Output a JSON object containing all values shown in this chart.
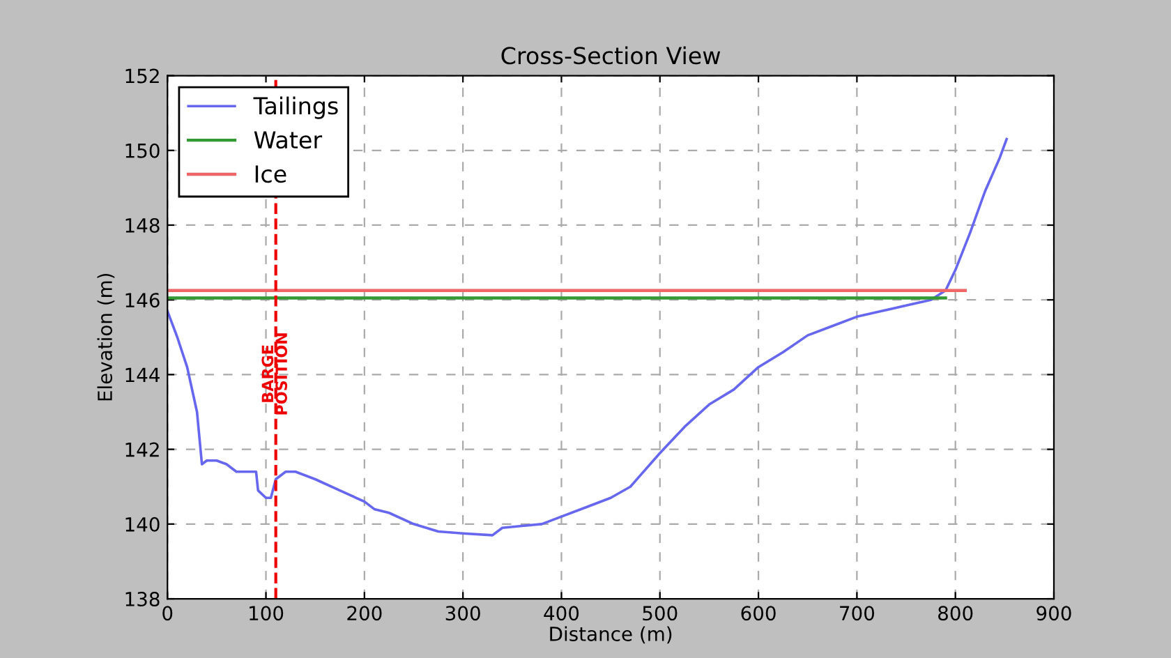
{
  "chart_data": {
    "type": "line",
    "title": "Cross-Section View",
    "xlabel": "Distance (m)",
    "ylabel": "Elevation (m)",
    "xlim": [
      0,
      900
    ],
    "ylim": [
      138,
      152
    ],
    "xticks": [
      0,
      100,
      200,
      300,
      400,
      500,
      600,
      700,
      800,
      900
    ],
    "yticks": [
      138,
      140,
      142,
      144,
      146,
      148,
      150,
      152
    ],
    "grid": true,
    "legend": "top left",
    "line_style": "solid",
    "series": [
      {
        "name": "Tailings",
        "color": "#6666ee",
        "x": [
          0,
          10,
          20,
          30,
          35,
          40,
          50,
          60,
          70,
          80,
          90,
          92,
          100,
          105,
          110,
          120,
          130,
          150,
          175,
          200,
          210,
          225,
          250,
          275,
          300,
          330,
          340,
          360,
          380,
          400,
          425,
          450,
          470,
          480,
          500,
          525,
          550,
          575,
          600,
          625,
          650,
          675,
          700,
          725,
          750,
          775,
          790,
          800,
          815,
          830,
          845,
          852
        ],
        "values": [
          145.7,
          145.0,
          144.2,
          143.0,
          141.6,
          141.7,
          141.7,
          141.6,
          141.4,
          141.4,
          141.4,
          140.9,
          140.7,
          140.7,
          141.2,
          141.4,
          141.4,
          141.2,
          140.9,
          140.6,
          140.4,
          140.3,
          140.0,
          139.8,
          139.75,
          139.7,
          139.9,
          139.95,
          140.0,
          140.2,
          140.45,
          140.7,
          141.0,
          141.3,
          141.9,
          142.6,
          143.2,
          143.6,
          144.2,
          144.6,
          145.05,
          145.3,
          145.55,
          145.7,
          145.85,
          146.0,
          146.25,
          146.8,
          147.8,
          148.9,
          149.8,
          150.3
        ]
      },
      {
        "name": "Water",
        "color": "#339933",
        "x": [
          0,
          790
        ],
        "values": [
          146.05,
          146.05
        ]
      },
      {
        "name": "Ice",
        "color": "#ee6666",
        "x": [
          0,
          810
        ],
        "values": [
          146.25,
          146.25
        ]
      }
    ],
    "ref_lines": [
      {
        "axis": "x",
        "value": 110,
        "label": "BARGE\nPOSITION",
        "color": "#ee0000",
        "line_style": "dashed"
      }
    ]
  }
}
